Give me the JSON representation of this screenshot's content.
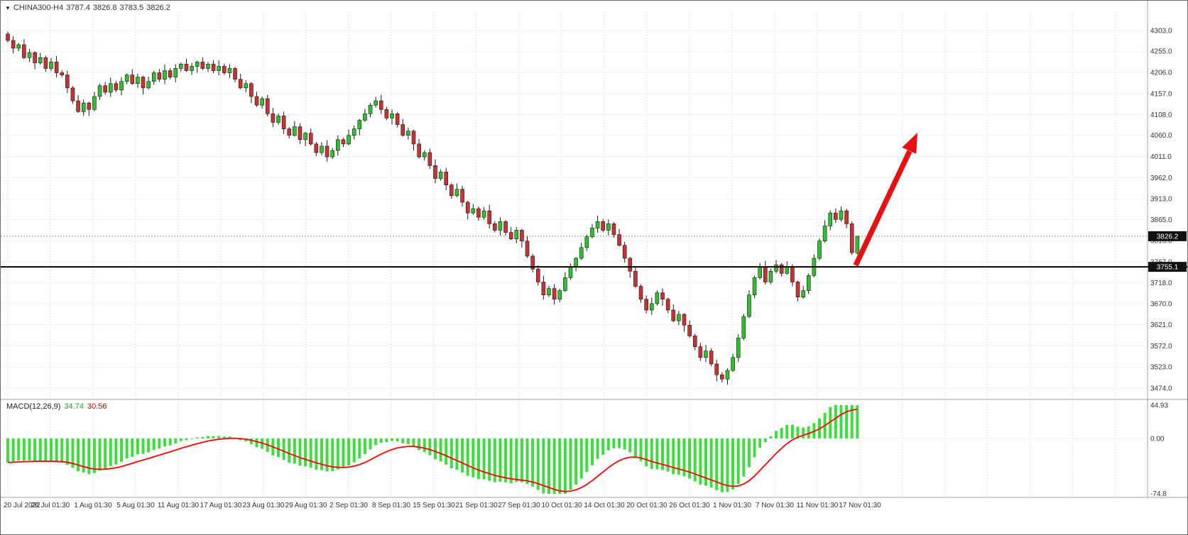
{
  "header": {
    "symbol": "CHINA300-H4",
    "open": "3787.4",
    "high": "3826.8",
    "low": "3783.5",
    "close": "3826.2"
  },
  "indicator_label": {
    "name": "MACD(12,26,9)",
    "main": "34.74",
    "signal": "30.56"
  },
  "price_axis": {
    "tick_labels": [
      "4303.0",
      "4255.0",
      "4206.0",
      "4157.0",
      "4108.0",
      "4060.0",
      "4011.0",
      "3962.0",
      "3913.0",
      "3865.0",
      "3816.0",
      "3767.0",
      "3718.0",
      "3670.0",
      "3621.0",
      "3572.0",
      "3523.0",
      "3474.0"
    ],
    "current_price_label": "3826.2",
    "support_price_label": "3755.1"
  },
  "macd_axis": {
    "tick_labels": [
      "44.93",
      "0.00",
      "-74.8"
    ]
  },
  "time_axis": {
    "tick_labels": [
      "20 Jul 2022",
      "26 Jul 01:30",
      "1 Aug 01:30",
      "5 Aug 01:30",
      "11 Aug 01:30",
      "17 Aug 01:30",
      "23 Aug 01:30",
      "29 Aug 01:30",
      "2 Sep 01:30",
      "8 Sep 01:30",
      "15 Sep 01:30",
      "21 Sep 01:30",
      "27 Sep 01:30",
      "10 Oct 01:30",
      "14 Oct 01:30",
      "20 Oct 01:30",
      "26 Oct 01:30",
      "1 Nov 01:30",
      "7 Nov 01:30",
      "11 Nov 01:30",
      "17 Nov 01:30"
    ]
  },
  "colors": {
    "background": "#ffffff",
    "grid": "#cfcfcf",
    "bull": "#2fbf2f",
    "bear": "#c83232",
    "wick": "#1a1a1a",
    "candle_border": "#1a1a1a",
    "macd_bar": "#3ddd3d",
    "macd_signal": "#ff0000",
    "support_line": "#000000",
    "badge_bg": "#111111",
    "badge_text": "#ffffff",
    "axis_text": "#333333",
    "arrow": "#e81111",
    "separator": "#a0a0a0",
    "current_price_line": "#9a9a9a"
  },
  "chart_data": {
    "type": "candlestick",
    "symbol": "CHINA300-H4",
    "timeframe": "H4",
    "title": "CHINA300-H4 3787.4 3826.8 3783.5 3826.2",
    "ylim": [
      3474.0,
      4303.0
    ],
    "current_price": 3826.2,
    "support_price": 3755.1,
    "x_tick_labels": [
      "20 Jul 2022",
      "26 Jul 01:30",
      "1 Aug 01:30",
      "5 Aug 01:30",
      "11 Aug 01:30",
      "17 Aug 01:30",
      "23 Aug 01:30",
      "29 Aug 01:30",
      "2 Sep 01:30",
      "8 Sep 01:30",
      "15 Sep 01:30",
      "21 Sep 01:30",
      "27 Sep 01:30",
      "10 Oct 01:30",
      "14 Oct 01:30",
      "20 Oct 01:30",
      "26 Oct 01:30",
      "1 Nov 01:30",
      "7 Nov 01:30",
      "11 Nov 01:30",
      "17 Nov 01:30"
    ],
    "ohlc": [
      [
        4295,
        4301,
        4275,
        4280
      ],
      [
        4280,
        4290,
        4250,
        4262
      ],
      [
        4262,
        4274,
        4255,
        4270
      ],
      [
        4270,
        4283,
        4237,
        4240
      ],
      [
        4240,
        4260,
        4230,
        4252
      ],
      [
        4252,
        4255,
        4213,
        4228
      ],
      [
        4228,
        4251,
        4224,
        4240
      ],
      [
        4240,
        4245,
        4207,
        4215
      ],
      [
        4215,
        4239,
        4209,
        4230
      ],
      [
        4230,
        4244,
        4194,
        4205
      ],
      [
        4205,
        4211,
        4195,
        4200
      ],
      [
        4200,
        4210,
        4158,
        4170
      ],
      [
        4170,
        4174,
        4133,
        4140
      ],
      [
        4140,
        4153,
        4112,
        4115
      ],
      [
        4115,
        4143,
        4105,
        4135
      ],
      [
        4135,
        4138,
        4105,
        4120
      ],
      [
        4120,
        4161,
        4116,
        4150
      ],
      [
        4150,
        4180,
        4142,
        4175
      ],
      [
        4175,
        4184,
        4154,
        4160
      ],
      [
        4160,
        4194,
        4149,
        4180
      ],
      [
        4180,
        4186,
        4160,
        4165
      ],
      [
        4165,
        4195,
        4153,
        4185
      ],
      [
        4185,
        4204,
        4178,
        4200
      ],
      [
        4200,
        4213,
        4177,
        4180
      ],
      [
        4180,
        4203,
        4170,
        4195
      ],
      [
        4195,
        4198,
        4155,
        4170
      ],
      [
        4170,
        4196,
        4166,
        4185
      ],
      [
        4185,
        4210,
        4177,
        4205
      ],
      [
        4205,
        4214,
        4184,
        4190
      ],
      [
        4190,
        4224,
        4179,
        4210
      ],
      [
        4210,
        4216,
        4190,
        4195
      ],
      [
        4195,
        4225,
        4183,
        4215
      ],
      [
        4215,
        4229,
        4208,
        4225
      ],
      [
        4225,
        4238,
        4207,
        4210
      ],
      [
        4210,
        4228,
        4200,
        4220
      ],
      [
        4220,
        4233,
        4205,
        4230
      ],
      [
        4230,
        4241,
        4211,
        4215
      ],
      [
        4215,
        4230,
        4207,
        4225
      ],
      [
        4225,
        4234,
        4204,
        4210
      ],
      [
        4210,
        4234,
        4199,
        4220
      ],
      [
        4220,
        4226,
        4200,
        4205
      ],
      [
        4205,
        4225,
        4193,
        4215
      ],
      [
        4215,
        4219,
        4183,
        4190
      ],
      [
        4190,
        4203,
        4167,
        4170
      ],
      [
        4170,
        4188,
        4160,
        4180
      ],
      [
        4180,
        4183,
        4135,
        4150
      ],
      [
        4150,
        4161,
        4126,
        4130
      ],
      [
        4130,
        4150,
        4122,
        4145
      ],
      [
        4145,
        4154,
        4104,
        4110
      ],
      [
        4110,
        4124,
        4079,
        4090
      ],
      [
        4090,
        4111,
        4085,
        4105
      ],
      [
        4105,
        4115,
        4063,
        4075
      ],
      [
        4075,
        4079,
        4053,
        4060
      ],
      [
        4060,
        4093,
        4057,
        4080
      ],
      [
        4080,
        4088,
        4040,
        4050
      ],
      [
        4050,
        4068,
        4035,
        4065
      ],
      [
        4065,
        4076,
        4036,
        4040
      ],
      [
        4040,
        4045,
        4012,
        4020
      ],
      [
        4020,
        4044,
        4014,
        4035
      ],
      [
        4035,
        4049,
        3999,
        4010
      ],
      [
        4010,
        4031,
        4005,
        4025
      ],
      [
        4025,
        4060,
        4013,
        4050
      ],
      [
        4050,
        4054,
        4033,
        4040
      ],
      [
        4040,
        4073,
        4037,
        4060
      ],
      [
        4060,
        4083,
        4050,
        4075
      ],
      [
        4075,
        4098,
        4060,
        4095
      ],
      [
        4095,
        4121,
        4091,
        4110
      ],
      [
        4110,
        4135,
        4102,
        4130
      ],
      [
        4130,
        4149,
        4124,
        4140
      ],
      [
        4140,
        4154,
        4109,
        4120
      ],
      [
        4120,
        4126,
        4095,
        4100
      ],
      [
        4100,
        4120,
        4085,
        4110
      ],
      [
        4110,
        4114,
        4078,
        4085
      ],
      [
        4085,
        4098,
        4057,
        4060
      ],
      [
        4060,
        4078,
        4050,
        4070
      ],
      [
        4070,
        4073,
        4025,
        4040
      ],
      [
        4040,
        4051,
        4006,
        4010
      ],
      [
        4010,
        4025,
        4002,
        4020
      ],
      [
        4020,
        4029,
        3982,
        3990
      ],
      [
        3990,
        4004,
        3949,
        3960
      ],
      [
        3960,
        3981,
        3955,
        3975
      ],
      [
        3975,
        3985,
        3933,
        3945
      ],
      [
        3945,
        3949,
        3913,
        3920
      ],
      [
        3920,
        3948,
        3917,
        3935
      ],
      [
        3935,
        3943,
        3895,
        3905
      ],
      [
        3905,
        3908,
        3865,
        3880
      ],
      [
        3880,
        3901,
        3876,
        3890
      ],
      [
        3890,
        3895,
        3862,
        3870
      ],
      [
        3870,
        3894,
        3864,
        3885
      ],
      [
        3885,
        3899,
        3844,
        3855
      ],
      [
        3855,
        3861,
        3835,
        3840
      ],
      [
        3840,
        3870,
        3828,
        3860
      ],
      [
        3860,
        3864,
        3828,
        3835
      ],
      [
        3835,
        3848,
        3817,
        3820
      ],
      [
        3820,
        3848,
        3810,
        3840
      ],
      [
        3840,
        3843,
        3800,
        3815
      ],
      [
        3815,
        3826,
        3776,
        3780
      ],
      [
        3780,
        3785,
        3742,
        3750
      ],
      [
        3750,
        3759,
        3712,
        3720
      ],
      [
        3720,
        3734,
        3679,
        3690
      ],
      [
        3690,
        3711,
        3685,
        3705
      ],
      [
        3705,
        3715,
        3668,
        3680
      ],
      [
        3680,
        3704,
        3673,
        3700
      ],
      [
        3700,
        3743,
        3697,
        3730
      ],
      [
        3730,
        3763,
        3725,
        3755
      ],
      [
        3755,
        3778,
        3745,
        3775
      ],
      [
        3775,
        3811,
        3771,
        3800
      ],
      [
        3800,
        3830,
        3792,
        3825
      ],
      [
        3825,
        3854,
        3821,
        3845
      ],
      [
        3845,
        3874,
        3834,
        3860
      ],
      [
        3860,
        3866,
        3835,
        3840
      ],
      [
        3840,
        3865,
        3828,
        3855
      ],
      [
        3855,
        3859,
        3823,
        3830
      ],
      [
        3830,
        3843,
        3802,
        3805
      ],
      [
        3805,
        3813,
        3765,
        3775
      ],
      [
        3775,
        3778,
        3730,
        3745
      ],
      [
        3745,
        3756,
        3706,
        3710
      ],
      [
        3710,
        3715,
        3672,
        3680
      ],
      [
        3680,
        3689,
        3647,
        3655
      ],
      [
        3655,
        3684,
        3644,
        3670
      ],
      [
        3670,
        3701,
        3665,
        3695
      ],
      [
        3695,
        3705,
        3665,
        3680
      ],
      [
        3680,
        3684,
        3648,
        3655
      ],
      [
        3655,
        3668,
        3627,
        3630
      ],
      [
        3630,
        3653,
        3620,
        3645
      ],
      [
        3645,
        3648,
        3605,
        3620
      ],
      [
        3620,
        3631,
        3591,
        3595
      ],
      [
        3595,
        3600,
        3562,
        3570
      ],
      [
        3570,
        3579,
        3537,
        3545
      ],
      [
        3545,
        3574,
        3534,
        3560
      ],
      [
        3560,
        3566,
        3525,
        3530
      ],
      [
        3530,
        3540,
        3490,
        3505
      ],
      [
        3505,
        3511,
        3487,
        3495
      ],
      [
        3495,
        3520,
        3482,
        3515
      ],
      [
        3515,
        3554,
        3511,
        3545
      ],
      [
        3545,
        3599,
        3535,
        3590
      ],
      [
        3590,
        3646,
        3585,
        3640
      ],
      [
        3640,
        3701,
        3636,
        3690
      ],
      [
        3690,
        3735,
        3682,
        3730
      ],
      [
        3730,
        3764,
        3726,
        3755
      ],
      [
        3755,
        3769,
        3714,
        3720
      ],
      [
        3720,
        3751,
        3715,
        3745
      ],
      [
        3745,
        3771,
        3740,
        3760
      ],
      [
        3760,
        3764,
        3733,
        3740
      ],
      [
        3740,
        3768,
        3737,
        3755
      ],
      [
        3755,
        3761,
        3710,
        3720
      ],
      [
        3720,
        3723,
        3675,
        3685
      ],
      [
        3685,
        3711,
        3681,
        3700
      ],
      [
        3700,
        3740,
        3692,
        3735
      ],
      [
        3735,
        3784,
        3731,
        3775
      ],
      [
        3775,
        3821,
        3770,
        3815
      ],
      [
        3815,
        3863,
        3811,
        3850
      ],
      [
        3850,
        3886,
        3840,
        3880
      ],
      [
        3880,
        3891,
        3857,
        3865
      ],
      [
        3865,
        3895,
        3860,
        3885
      ],
      [
        3885,
        3890,
        3845,
        3855
      ],
      [
        3855,
        3861,
        3783,
        3788
      ],
      [
        3787.4,
        3826.8,
        3783.5,
        3826.2
      ]
    ],
    "indicator": {
      "type": "macd_histogram_with_signal",
      "label": "MACD(12,26,9)",
      "params": [
        12,
        26,
        9
      ],
      "last_main": 34.74,
      "last_signal": 30.56,
      "ylim": [
        -74.8,
        44.93
      ],
      "y_tick_labels": [
        "44.93",
        "0.00",
        "-74.8"
      ]
    },
    "annotations": [
      {
        "type": "horizontal-line",
        "price": 3755.1,
        "color": "#000000",
        "label": "3755.1"
      },
      {
        "type": "arrow-up",
        "color": "#e81111",
        "note": "red upward trend arrow from support line toward upper right"
      },
      {
        "type": "price-badge",
        "price": 3826.2,
        "label": "3826.2"
      }
    ]
  }
}
